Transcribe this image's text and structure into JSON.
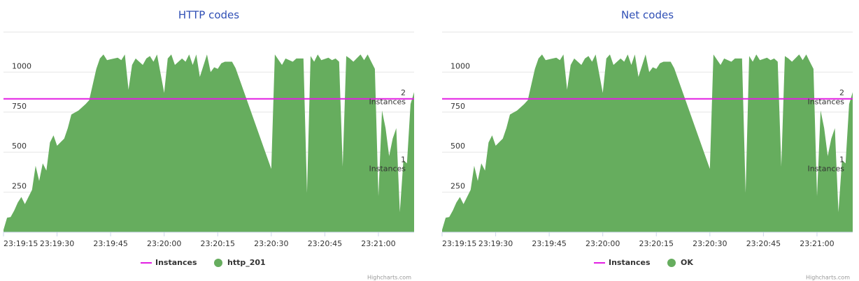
{
  "chart_data": [
    {
      "type": "area",
      "title": "HTTP codes",
      "x": [
        "23:19:15",
        "23:19:16",
        "23:19:17",
        "23:19:18",
        "23:19:19",
        "23:19:20",
        "23:19:21",
        "23:19:23",
        "23:19:24",
        "23:19:25",
        "23:19:26",
        "23:19:27",
        "23:19:28",
        "23:19:29",
        "23:19:30",
        "23:19:32",
        "23:19:33",
        "23:19:34",
        "23:19:36",
        "23:19:38",
        "23:19:39",
        "23:19:41",
        "23:19:42",
        "23:19:43",
        "23:19:44",
        "23:19:45",
        "23:19:47",
        "23:19:48",
        "23:19:49",
        "23:19:50",
        "23:19:51",
        "23:19:52",
        "23:19:54",
        "23:19:55",
        "23:19:56",
        "23:19:57",
        "23:19:58",
        "23:20:00",
        "23:20:01",
        "23:20:02",
        "23:20:03",
        "23:20:05",
        "23:20:06",
        "23:20:07",
        "23:20:08",
        "23:20:09",
        "23:20:10",
        "23:20:12",
        "23:20:13",
        "23:20:14",
        "23:20:15",
        "23:20:16",
        "23:20:17",
        "23:20:19",
        "23:20:20",
        "23:20:30",
        "23:20:31",
        "23:20:33",
        "23:20:34",
        "23:20:36",
        "23:20:37",
        "23:20:39",
        "23:20:40",
        "23:20:41",
        "23:20:42",
        "23:20:43",
        "23:20:44",
        "23:20:46",
        "23:20:47",
        "23:20:48",
        "23:20:49",
        "23:20:50",
        "23:20:51",
        "23:20:52",
        "23:20:53",
        "23:20:55",
        "23:20:56",
        "23:20:57",
        "23:20:58",
        "23:20:59",
        "23:21:00",
        "23:21:01",
        "23:21:02",
        "23:21:03",
        "23:21:04",
        "23:21:05",
        "23:21:06",
        "23:21:07",
        "23:21:08",
        "23:21:09",
        "23:21:10"
      ],
      "series": [
        {
          "name": "Instances",
          "color": "#e31ee3",
          "axis": "y2",
          "type": "line",
          "values": [
            2,
            2,
            2,
            2,
            2,
            2,
            2,
            2,
            2,
            2,
            2,
            2,
            2,
            2,
            2,
            2,
            2,
            2,
            2,
            2,
            2,
            2,
            2,
            2,
            2,
            2,
            2,
            2,
            2,
            2,
            2,
            2,
            2,
            2,
            2,
            2,
            2,
            2,
            2,
            2,
            2,
            2,
            2,
            2,
            2,
            2,
            2,
            2,
            2,
            2,
            2,
            2,
            2,
            2,
            2,
            2,
            2,
            2,
            2,
            2,
            2,
            2,
            2,
            2,
            2,
            2,
            2,
            2,
            2,
            2,
            2,
            2,
            2,
            2,
            2,
            2,
            2,
            2,
            2,
            2,
            2,
            2,
            2,
            2,
            2,
            2,
            2,
            2,
            2,
            2,
            2
          ]
        },
        {
          "name": "http_201",
          "color": "#66ad5e",
          "type": "area",
          "values": [
            15,
            90,
            95,
            135,
            185,
            220,
            175,
            265,
            415,
            320,
            430,
            385,
            560,
            605,
            540,
            585,
            650,
            735,
            760,
            800,
            825,
            1020,
            1085,
            1110,
            1075,
            1080,
            1090,
            1075,
            1110,
            890,
            1045,
            1085,
            1045,
            1085,
            1100,
            1065,
            1110,
            870,
            1085,
            1110,
            1045,
            1085,
            1065,
            1110,
            1045,
            1110,
            970,
            1110,
            1000,
            1030,
            1020,
            1055,
            1065,
            1065,
            1025,
            395,
            1110,
            1045,
            1085,
            1065,
            1085,
            1085,
            245,
            1100,
            1065,
            1110,
            1075,
            1090,
            1075,
            1085,
            1065,
            410,
            1100,
            1085,
            1065,
            1110,
            1075,
            1110,
            1065,
            1020,
            225,
            760,
            650,
            475,
            585,
            650,
            125,
            450,
            430,
            800,
            875
          ]
        }
      ],
      "xlim": [
        "23:19:15",
        "23:21:10"
      ],
      "xticks": [
        "23:19:15",
        "23:19:30",
        "23:19:45",
        "23:20:00",
        "23:20:15",
        "23:20:30",
        "23:20:45",
        "23:21:00"
      ],
      "ylim": [
        0,
        1250
      ],
      "yticks": [
        250,
        500,
        750,
        1000
      ],
      "y2lim": [
        0,
        3
      ],
      "annotations": [
        {
          "lines": [
            "2",
            "Instances"
          ],
          "y": 2
        },
        {
          "lines": [
            "1",
            "Instances"
          ],
          "y": 1
        }
      ],
      "grid": true,
      "legend": "bottom",
      "credits": "Highcharts.com"
    },
    {
      "type": "area",
      "title": "Net codes",
      "x": [
        "23:19:15",
        "23:19:16",
        "23:19:17",
        "23:19:18",
        "23:19:19",
        "23:19:20",
        "23:19:21",
        "23:19:23",
        "23:19:24",
        "23:19:25",
        "23:19:26",
        "23:19:27",
        "23:19:28",
        "23:19:29",
        "23:19:30",
        "23:19:32",
        "23:19:33",
        "23:19:34",
        "23:19:36",
        "23:19:38",
        "23:19:39",
        "23:19:41",
        "23:19:42",
        "23:19:43",
        "23:19:44",
        "23:19:45",
        "23:19:47",
        "23:19:48",
        "23:19:49",
        "23:19:50",
        "23:19:51",
        "23:19:52",
        "23:19:54",
        "23:19:55",
        "23:19:56",
        "23:19:57",
        "23:19:58",
        "23:20:00",
        "23:20:01",
        "23:20:02",
        "23:20:03",
        "23:20:05",
        "23:20:06",
        "23:20:07",
        "23:20:08",
        "23:20:09",
        "23:20:10",
        "23:20:12",
        "23:20:13",
        "23:20:14",
        "23:20:15",
        "23:20:16",
        "23:20:17",
        "23:20:19",
        "23:20:20",
        "23:20:30",
        "23:20:31",
        "23:20:33",
        "23:20:34",
        "23:20:36",
        "23:20:37",
        "23:20:39",
        "23:20:40",
        "23:20:41",
        "23:20:42",
        "23:20:43",
        "23:20:44",
        "23:20:46",
        "23:20:47",
        "23:20:48",
        "23:20:49",
        "23:20:50",
        "23:20:51",
        "23:20:52",
        "23:20:53",
        "23:20:55",
        "23:20:56",
        "23:20:57",
        "23:20:58",
        "23:20:59",
        "23:21:00",
        "23:21:01",
        "23:21:02",
        "23:21:03",
        "23:21:04",
        "23:21:05",
        "23:21:06",
        "23:21:07",
        "23:21:08",
        "23:21:09",
        "23:21:10"
      ],
      "series": [
        {
          "name": "Instances",
          "color": "#e31ee3",
          "axis": "y2",
          "type": "line",
          "values": [
            2,
            2,
            2,
            2,
            2,
            2,
            2,
            2,
            2,
            2,
            2,
            2,
            2,
            2,
            2,
            2,
            2,
            2,
            2,
            2,
            2,
            2,
            2,
            2,
            2,
            2,
            2,
            2,
            2,
            2,
            2,
            2,
            2,
            2,
            2,
            2,
            2,
            2,
            2,
            2,
            2,
            2,
            2,
            2,
            2,
            2,
            2,
            2,
            2,
            2,
            2,
            2,
            2,
            2,
            2,
            2,
            2,
            2,
            2,
            2,
            2,
            2,
            2,
            2,
            2,
            2,
            2,
            2,
            2,
            2,
            2,
            2,
            2,
            2,
            2,
            2,
            2,
            2,
            2,
            2,
            2,
            2,
            2,
            2,
            2,
            2,
            2,
            2,
            2,
            2,
            2
          ]
        },
        {
          "name": "OK",
          "color": "#66ad5e",
          "type": "area",
          "values": [
            15,
            90,
            95,
            135,
            185,
            220,
            175,
            265,
            415,
            320,
            430,
            385,
            560,
            605,
            540,
            585,
            650,
            735,
            760,
            800,
            825,
            1020,
            1085,
            1110,
            1075,
            1080,
            1090,
            1075,
            1110,
            890,
            1045,
            1085,
            1045,
            1085,
            1100,
            1065,
            1110,
            870,
            1085,
            1110,
            1045,
            1085,
            1065,
            1110,
            1045,
            1110,
            970,
            1110,
            1000,
            1030,
            1020,
            1055,
            1065,
            1065,
            1025,
            395,
            1110,
            1045,
            1085,
            1065,
            1085,
            1085,
            245,
            1100,
            1065,
            1110,
            1075,
            1090,
            1075,
            1085,
            1065,
            410,
            1100,
            1085,
            1065,
            1110,
            1075,
            1110,
            1065,
            1020,
            225,
            760,
            650,
            475,
            585,
            650,
            125,
            450,
            430,
            800,
            875
          ]
        }
      ],
      "xlim": [
        "23:19:15",
        "23:21:10"
      ],
      "xticks": [
        "23:19:15",
        "23:19:30",
        "23:19:45",
        "23:20:00",
        "23:20:15",
        "23:20:30",
        "23:20:45",
        "23:21:00"
      ],
      "ylim": [
        0,
        1250
      ],
      "yticks": [
        250,
        500,
        750,
        1000
      ],
      "y2lim": [
        0,
        3
      ],
      "annotations": [
        {
          "lines": [
            "2",
            "Instances"
          ],
          "y": 2
        },
        {
          "lines": [
            "1",
            "Instances"
          ],
          "y": 1
        }
      ],
      "grid": true,
      "legend": "bottom",
      "credits": "Highcharts.com"
    }
  ]
}
